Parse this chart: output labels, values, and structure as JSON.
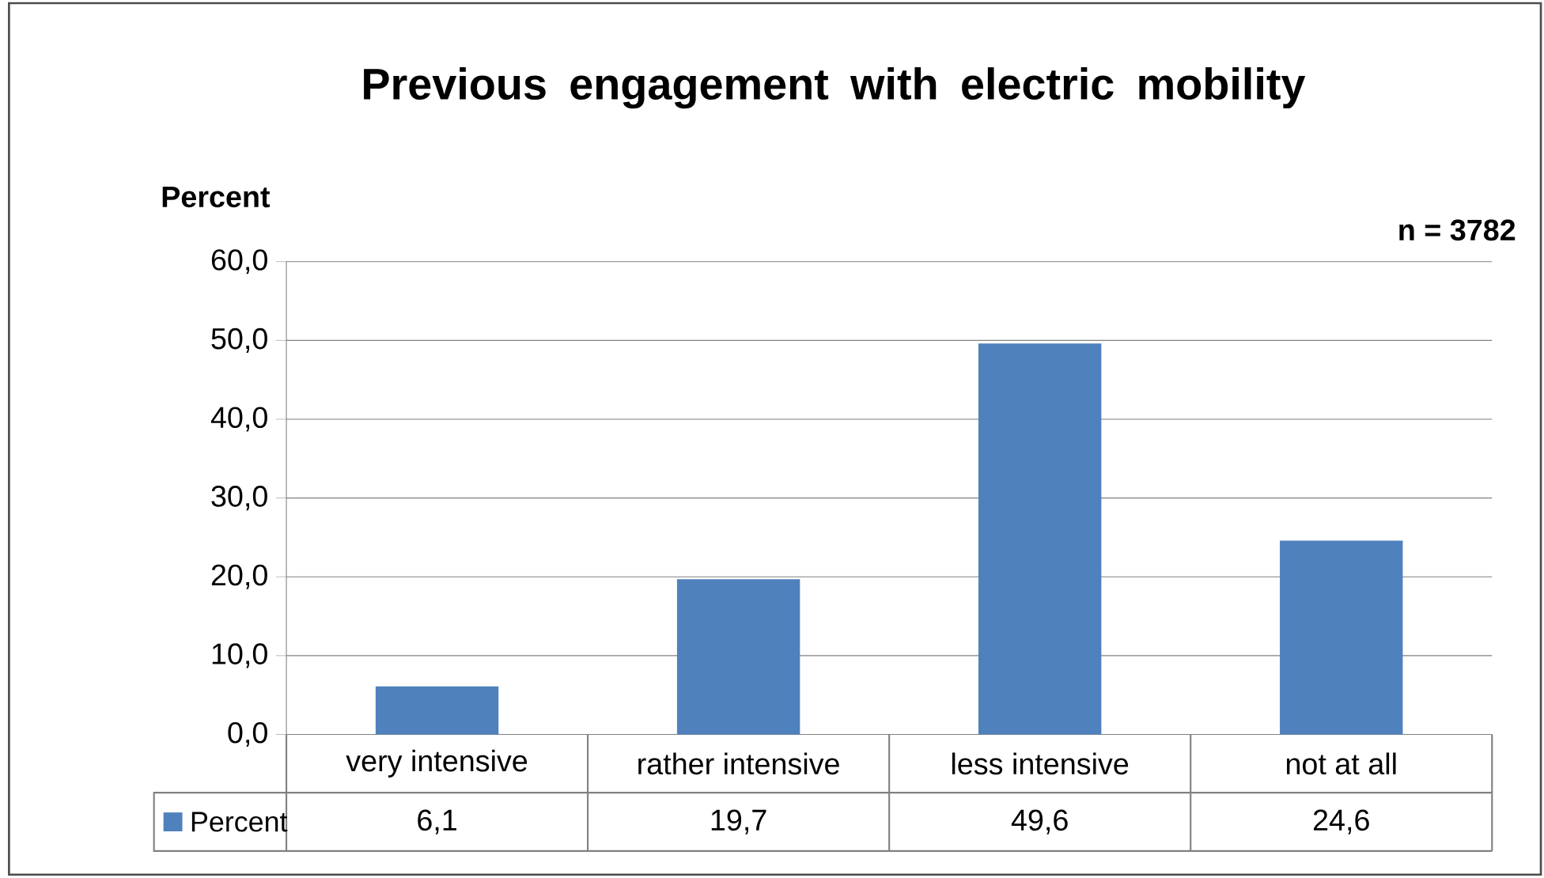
{
  "chart_data": {
    "type": "bar",
    "title": "Previous engagement with electric mobility",
    "ylabel": "Percent",
    "annotations": [
      "n = 3782"
    ],
    "categories": [
      "very intensive",
      "rather intensive",
      "less intensive",
      "not at all"
    ],
    "series": [
      {
        "name": "Percent",
        "color": "#4f81bd",
        "values": [
          6.1,
          19.7,
          49.6,
          24.6
        ],
        "value_labels": [
          "6,1",
          "19,7",
          "49,6",
          "24,6"
        ]
      }
    ],
    "ylim": [
      0,
      60
    ],
    "yticks": [
      {
        "value": 0,
        "label": "0,0"
      },
      {
        "value": 10,
        "label": "10,0"
      },
      {
        "value": 20,
        "label": "20,0"
      },
      {
        "value": 30,
        "label": "30,0"
      },
      {
        "value": 40,
        "label": "40,0"
      },
      {
        "value": 50,
        "label": "50,0"
      },
      {
        "value": 60,
        "label": "60,0"
      }
    ],
    "grid": "y",
    "legend": "bottom"
  }
}
